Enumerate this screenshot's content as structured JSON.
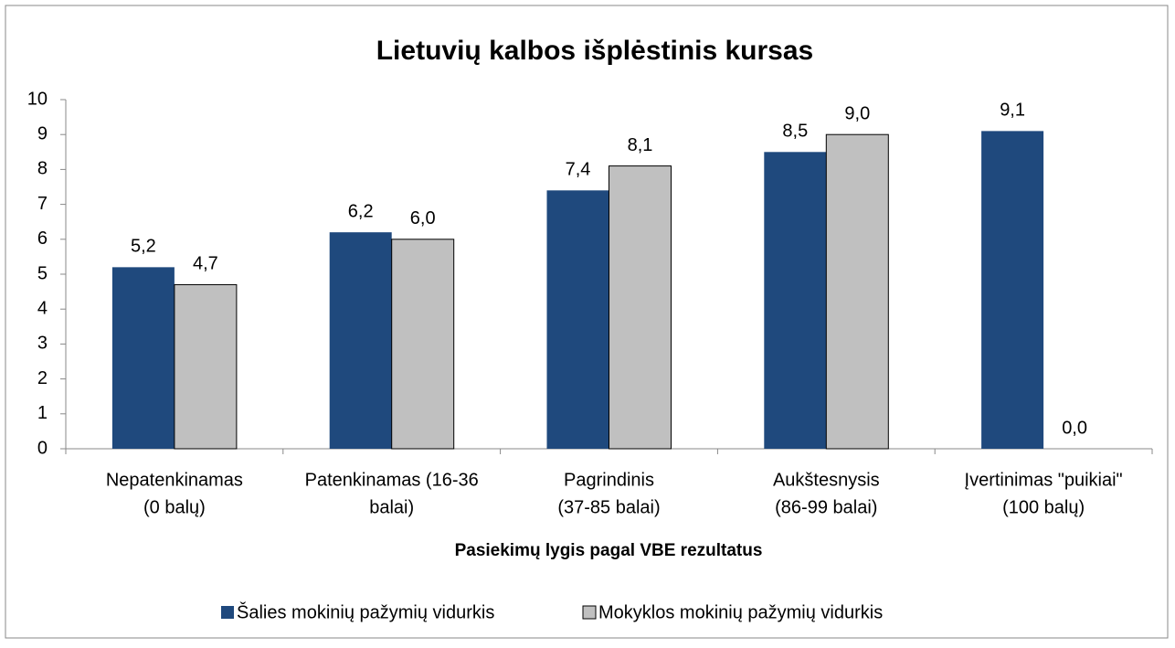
{
  "chart_data": {
    "type": "bar",
    "title": "Lietuvių kalbos išplėstinis kursas",
    "x_label": "Pasiekimų lygis pagal VBE rezultatus",
    "categories": [
      [
        "Nepatenkinamas",
        "(0 balų)"
      ],
      [
        "Patenkinamas  (16-36",
        "balai)"
      ],
      [
        "Pagrindinis",
        "(37-85 balai)"
      ],
      [
        "Aukštesnysis",
        "(86-99 balai)"
      ],
      [
        "Įvertinimas \"puikiai\"",
        "(100 balų)"
      ]
    ],
    "series": [
      {
        "name": "Šalies mokinių pažymių vidurkis",
        "color": "#1f497d",
        "values": [
          5.2,
          6.2,
          7.4,
          8.5,
          9.1
        ],
        "value_labels": [
          "5,2",
          "6,2",
          "7,4",
          "8,5",
          "9,1"
        ]
      },
      {
        "name": "Mokyklos mokinių pažymių vidurkis",
        "color": "#c0c0c0",
        "values": [
          4.7,
          6.0,
          8.1,
          9.0,
          0.0
        ],
        "value_labels": [
          "4,7",
          "6,0",
          "8,1",
          "9,0",
          "0,0"
        ]
      }
    ],
    "ylim": [
      0,
      10
    ],
    "yticks": [
      0,
      1,
      2,
      3,
      4,
      5,
      6,
      7,
      8,
      9,
      10
    ],
    "legend": "bottom"
  }
}
